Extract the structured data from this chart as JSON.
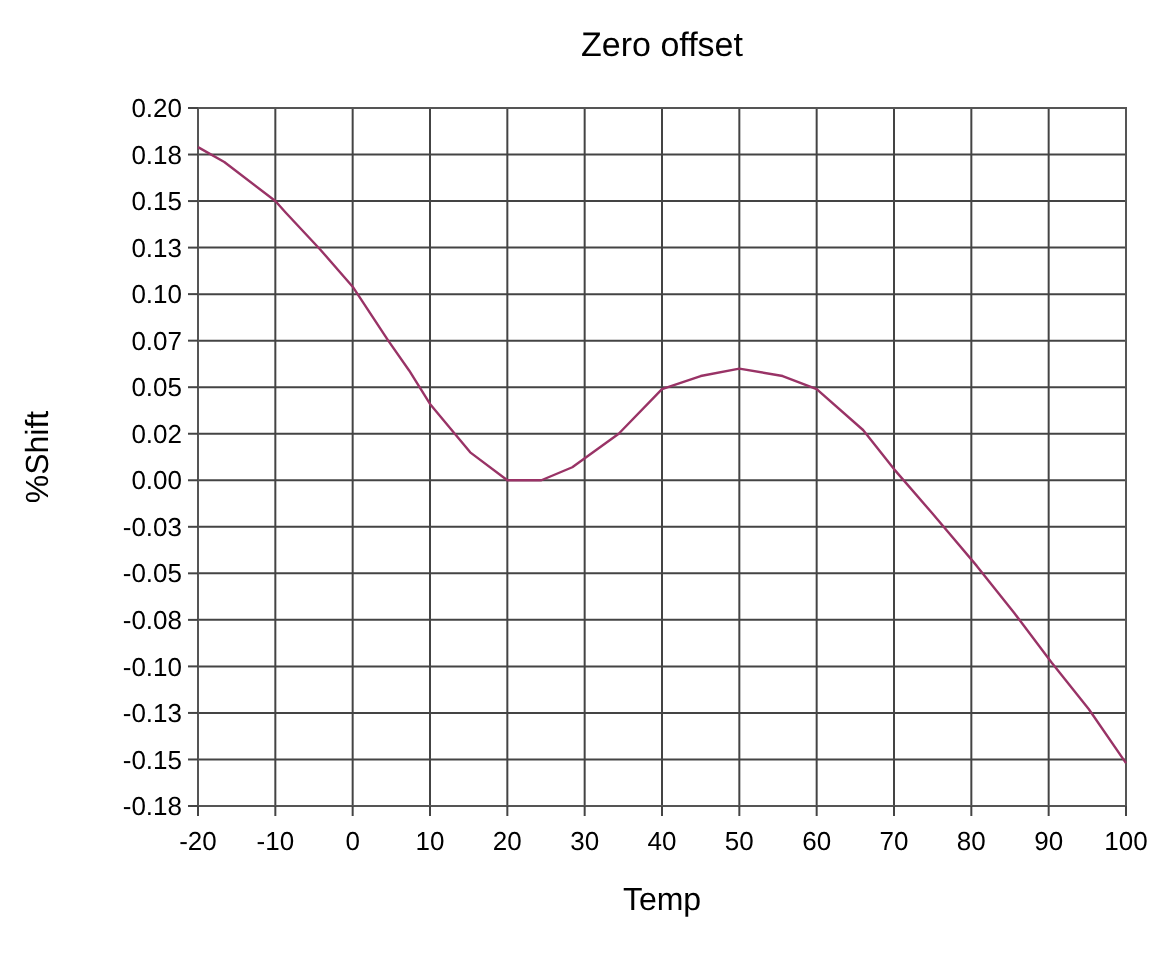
{
  "chart_data": {
    "type": "line",
    "title": "Zero offset",
    "xlabel": "Temp",
    "ylabel": "%Shift",
    "x": [
      -20,
      -16.6,
      -10,
      -8.7,
      -4.2,
      0,
      4.6,
      7.3,
      10,
      15.2,
      20,
      24.4,
      28.4,
      34.4,
      40,
      45,
      50,
      55.6,
      60,
      66,
      70,
      75,
      80.7,
      85.5,
      90.4,
      95.2,
      100
    ],
    "series": [
      {
        "color": "#993366",
        "values": [
          0.179,
          0.171,
          0.15,
          0.144,
          0.124,
          0.104,
          0.075,
          0.059,
          0.041,
          0.015,
          0,
          0,
          0.007,
          0.025,
          0.049,
          0.056,
          0.06,
          0.056,
          0.049,
          0.027,
          0.006,
          -0.018,
          -0.046,
          -0.071,
          -0.098,
          -0.123,
          -0.152
        ]
      }
    ],
    "xlim": [
      -20,
      100
    ],
    "xticks": [
      -20,
      -10,
      0,
      10,
      20,
      30,
      40,
      50,
      60,
      70,
      80,
      90,
      100
    ],
    "ylim": [
      -0.175,
      0.2
    ],
    "yticks": [
      {
        "value": 0.2,
        "label": "0.20"
      },
      {
        "value": 0.175,
        "label": "0.18"
      },
      {
        "value": 0.15,
        "label": "0.15"
      },
      {
        "value": 0.125,
        "label": "0.13"
      },
      {
        "value": 0.1,
        "label": "0.10"
      },
      {
        "value": 0.075,
        "label": "0.07"
      },
      {
        "value": 0.05,
        "label": "0.05"
      },
      {
        "value": 0.025,
        "label": "0.02"
      },
      {
        "value": 0,
        "label": "0.00"
      },
      {
        "value": -0.025,
        "label": "-0.03"
      },
      {
        "value": -0.05,
        "label": "-0.05"
      },
      {
        "value": -0.075,
        "label": "-0.08"
      },
      {
        "value": -0.1,
        "label": "-0.10"
      },
      {
        "value": -0.125,
        "label": "-0.13"
      },
      {
        "value": -0.15,
        "label": "-0.15"
      },
      {
        "value": -0.175,
        "label": "-0.18"
      }
    ],
    "grid": true,
    "marker": "none",
    "line_style": "solid"
  }
}
